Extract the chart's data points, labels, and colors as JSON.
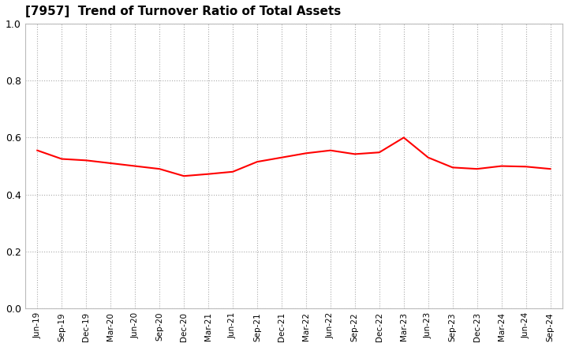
{
  "title": "[7957]  Trend of Turnover Ratio of Total Assets",
  "line_color": "#FF0000",
  "line_width": 1.5,
  "background_color": "#FFFFFF",
  "grid_color": "#AAAAAA",
  "ylim": [
    0.0,
    1.0
  ],
  "yticks": [
    0.0,
    0.2,
    0.4,
    0.6,
    0.8,
    1.0
  ],
  "labels": [
    "Jun-19",
    "Sep-19",
    "Dec-19",
    "Mar-20",
    "Jun-20",
    "Sep-20",
    "Dec-20",
    "Mar-21",
    "Jun-21",
    "Sep-21",
    "Dec-21",
    "Mar-22",
    "Jun-22",
    "Sep-22",
    "Dec-22",
    "Mar-23",
    "Jun-23",
    "Sep-23",
    "Dec-23",
    "Mar-24",
    "Jun-24",
    "Sep-24"
  ],
  "values": [
    0.555,
    0.525,
    0.52,
    0.51,
    0.5,
    0.49,
    0.465,
    0.472,
    0.48,
    0.515,
    0.53,
    0.545,
    0.555,
    0.542,
    0.548,
    0.6,
    0.53,
    0.495,
    0.49,
    0.5,
    0.498,
    0.49
  ]
}
